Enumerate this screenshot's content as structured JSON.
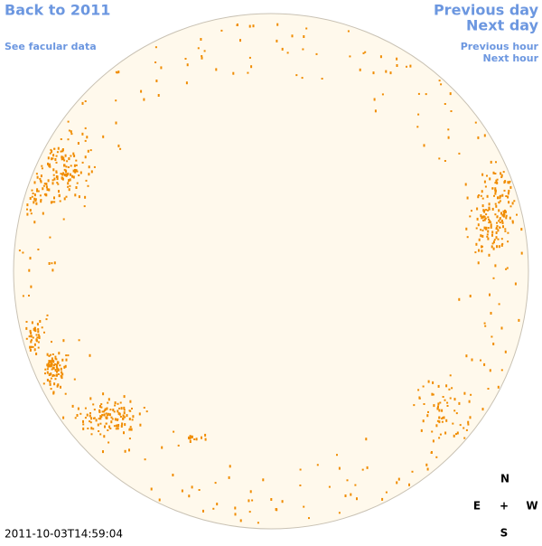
{
  "links": {
    "back": "Back to 2011",
    "facular": "See facular data",
    "previous_day": "Previous day",
    "next_day": "Next day",
    "previous_hour": "Previous hour",
    "next_hour": "Next hour"
  },
  "compass": {
    "north": "N",
    "east": "E",
    "center": "+",
    "west": "W",
    "south": "S"
  },
  "timestamp": "2011-10-03T14:59:04"
}
